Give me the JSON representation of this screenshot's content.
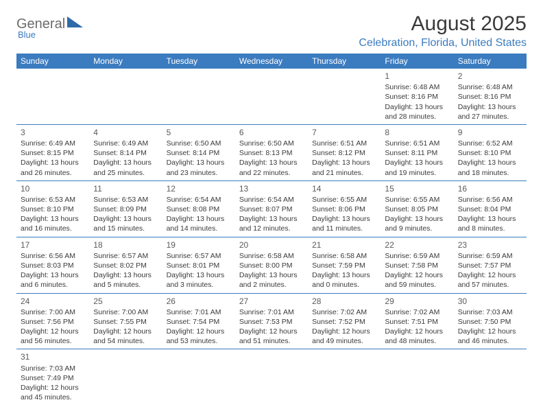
{
  "logo": {
    "text1": "General",
    "text2": "Blue"
  },
  "title": {
    "month_year": "August 2025",
    "location": "Celebration, Florida, United States"
  },
  "colors": {
    "header_bg": "#3b7bbf",
    "rule": "#3b7bbf",
    "text": "#3a3a3a"
  },
  "day_headers": [
    "Sunday",
    "Monday",
    "Tuesday",
    "Wednesday",
    "Thursday",
    "Friday",
    "Saturday"
  ],
  "weeks": [
    [
      null,
      null,
      null,
      null,
      null,
      {
        "n": "1",
        "sr": "Sunrise: 6:48 AM",
        "ss": "Sunset: 8:16 PM",
        "d1": "Daylight: 13 hours",
        "d2": "and 28 minutes."
      },
      {
        "n": "2",
        "sr": "Sunrise: 6:48 AM",
        "ss": "Sunset: 8:16 PM",
        "d1": "Daylight: 13 hours",
        "d2": "and 27 minutes."
      }
    ],
    [
      {
        "n": "3",
        "sr": "Sunrise: 6:49 AM",
        "ss": "Sunset: 8:15 PM",
        "d1": "Daylight: 13 hours",
        "d2": "and 26 minutes."
      },
      {
        "n": "4",
        "sr": "Sunrise: 6:49 AM",
        "ss": "Sunset: 8:14 PM",
        "d1": "Daylight: 13 hours",
        "d2": "and 25 minutes."
      },
      {
        "n": "5",
        "sr": "Sunrise: 6:50 AM",
        "ss": "Sunset: 8:14 PM",
        "d1": "Daylight: 13 hours",
        "d2": "and 23 minutes."
      },
      {
        "n": "6",
        "sr": "Sunrise: 6:50 AM",
        "ss": "Sunset: 8:13 PM",
        "d1": "Daylight: 13 hours",
        "d2": "and 22 minutes."
      },
      {
        "n": "7",
        "sr": "Sunrise: 6:51 AM",
        "ss": "Sunset: 8:12 PM",
        "d1": "Daylight: 13 hours",
        "d2": "and 21 minutes."
      },
      {
        "n": "8",
        "sr": "Sunrise: 6:51 AM",
        "ss": "Sunset: 8:11 PM",
        "d1": "Daylight: 13 hours",
        "d2": "and 19 minutes."
      },
      {
        "n": "9",
        "sr": "Sunrise: 6:52 AM",
        "ss": "Sunset: 8:10 PM",
        "d1": "Daylight: 13 hours",
        "d2": "and 18 minutes."
      }
    ],
    [
      {
        "n": "10",
        "sr": "Sunrise: 6:53 AM",
        "ss": "Sunset: 8:10 PM",
        "d1": "Daylight: 13 hours",
        "d2": "and 16 minutes."
      },
      {
        "n": "11",
        "sr": "Sunrise: 6:53 AM",
        "ss": "Sunset: 8:09 PM",
        "d1": "Daylight: 13 hours",
        "d2": "and 15 minutes."
      },
      {
        "n": "12",
        "sr": "Sunrise: 6:54 AM",
        "ss": "Sunset: 8:08 PM",
        "d1": "Daylight: 13 hours",
        "d2": "and 14 minutes."
      },
      {
        "n": "13",
        "sr": "Sunrise: 6:54 AM",
        "ss": "Sunset: 8:07 PM",
        "d1": "Daylight: 13 hours",
        "d2": "and 12 minutes."
      },
      {
        "n": "14",
        "sr": "Sunrise: 6:55 AM",
        "ss": "Sunset: 8:06 PM",
        "d1": "Daylight: 13 hours",
        "d2": "and 11 minutes."
      },
      {
        "n": "15",
        "sr": "Sunrise: 6:55 AM",
        "ss": "Sunset: 8:05 PM",
        "d1": "Daylight: 13 hours",
        "d2": "and 9 minutes."
      },
      {
        "n": "16",
        "sr": "Sunrise: 6:56 AM",
        "ss": "Sunset: 8:04 PM",
        "d1": "Daylight: 13 hours",
        "d2": "and 8 minutes."
      }
    ],
    [
      {
        "n": "17",
        "sr": "Sunrise: 6:56 AM",
        "ss": "Sunset: 8:03 PM",
        "d1": "Daylight: 13 hours",
        "d2": "and 6 minutes."
      },
      {
        "n": "18",
        "sr": "Sunrise: 6:57 AM",
        "ss": "Sunset: 8:02 PM",
        "d1": "Daylight: 13 hours",
        "d2": "and 5 minutes."
      },
      {
        "n": "19",
        "sr": "Sunrise: 6:57 AM",
        "ss": "Sunset: 8:01 PM",
        "d1": "Daylight: 13 hours",
        "d2": "and 3 minutes."
      },
      {
        "n": "20",
        "sr": "Sunrise: 6:58 AM",
        "ss": "Sunset: 8:00 PM",
        "d1": "Daylight: 13 hours",
        "d2": "and 2 minutes."
      },
      {
        "n": "21",
        "sr": "Sunrise: 6:58 AM",
        "ss": "Sunset: 7:59 PM",
        "d1": "Daylight: 13 hours",
        "d2": "and 0 minutes."
      },
      {
        "n": "22",
        "sr": "Sunrise: 6:59 AM",
        "ss": "Sunset: 7:58 PM",
        "d1": "Daylight: 12 hours",
        "d2": "and 59 minutes."
      },
      {
        "n": "23",
        "sr": "Sunrise: 6:59 AM",
        "ss": "Sunset: 7:57 PM",
        "d1": "Daylight: 12 hours",
        "d2": "and 57 minutes."
      }
    ],
    [
      {
        "n": "24",
        "sr": "Sunrise: 7:00 AM",
        "ss": "Sunset: 7:56 PM",
        "d1": "Daylight: 12 hours",
        "d2": "and 56 minutes."
      },
      {
        "n": "25",
        "sr": "Sunrise: 7:00 AM",
        "ss": "Sunset: 7:55 PM",
        "d1": "Daylight: 12 hours",
        "d2": "and 54 minutes."
      },
      {
        "n": "26",
        "sr": "Sunrise: 7:01 AM",
        "ss": "Sunset: 7:54 PM",
        "d1": "Daylight: 12 hours",
        "d2": "and 53 minutes."
      },
      {
        "n": "27",
        "sr": "Sunrise: 7:01 AM",
        "ss": "Sunset: 7:53 PM",
        "d1": "Daylight: 12 hours",
        "d2": "and 51 minutes."
      },
      {
        "n": "28",
        "sr": "Sunrise: 7:02 AM",
        "ss": "Sunset: 7:52 PM",
        "d1": "Daylight: 12 hours",
        "d2": "and 49 minutes."
      },
      {
        "n": "29",
        "sr": "Sunrise: 7:02 AM",
        "ss": "Sunset: 7:51 PM",
        "d1": "Daylight: 12 hours",
        "d2": "and 48 minutes."
      },
      {
        "n": "30",
        "sr": "Sunrise: 7:03 AM",
        "ss": "Sunset: 7:50 PM",
        "d1": "Daylight: 12 hours",
        "d2": "and 46 minutes."
      }
    ],
    [
      {
        "n": "31",
        "sr": "Sunrise: 7:03 AM",
        "ss": "Sunset: 7:49 PM",
        "d1": "Daylight: 12 hours",
        "d2": "and 45 minutes."
      },
      null,
      null,
      null,
      null,
      null,
      null
    ]
  ]
}
